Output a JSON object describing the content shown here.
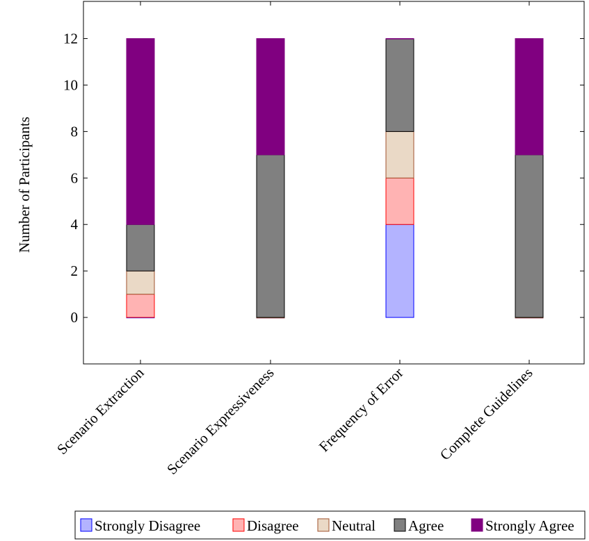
{
  "chart_data": {
    "type": "bar",
    "stacked": true,
    "title": "",
    "xlabel": "",
    "ylabel": "Number of Participants",
    "ylim": [
      -2,
      13.6
    ],
    "yticks": [
      0,
      2,
      4,
      6,
      8,
      10,
      12
    ],
    "categories": [
      "Scenario Extraction",
      "Scenario Expressiveness",
      "Frequency of Error",
      "Complete Guidelines"
    ],
    "series": [
      {
        "name": "Strongly Disagree",
        "values": [
          0,
          0,
          4,
          0
        ],
        "fill": "#b3b3ff",
        "stroke": "#0000ff"
      },
      {
        "name": "Disagree",
        "values": [
          1,
          0,
          2,
          0
        ],
        "fill": "#ffb3b3",
        "stroke": "#ff0000"
      },
      {
        "name": "Neutral",
        "values": [
          1,
          0,
          2,
          0
        ],
        "fill": "#ead9c6",
        "stroke": "#a0522d"
      },
      {
        "name": "Agree",
        "values": [
          2,
          7,
          4,
          7
        ],
        "fill": "#808080",
        "stroke": "#000000"
      },
      {
        "name": "Strongly Agree",
        "values": [
          8,
          5,
          0,
          5
        ],
        "fill": "#800080",
        "stroke": "#800080"
      }
    ],
    "legend_position": "bottom-right",
    "grid": false
  }
}
